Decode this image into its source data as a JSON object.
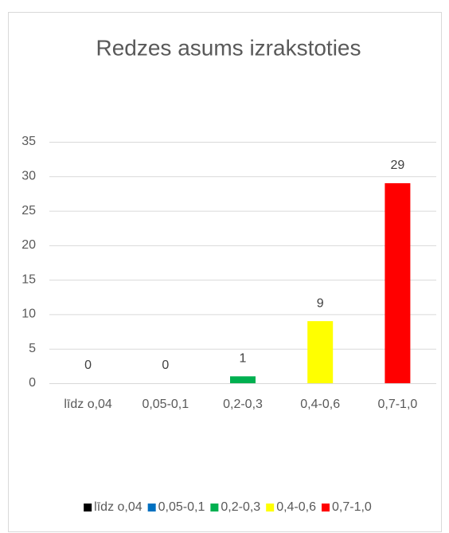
{
  "chart_data": {
    "type": "bar",
    "title": "Redzes asums izrakstoties",
    "categories": [
      "līdz o,04",
      "0,05-0,1",
      "0,2-0,3",
      "0,4-0,6",
      "0,7-1,0"
    ],
    "values": [
      0,
      0,
      1,
      9,
      29
    ],
    "colors": [
      "#000000",
      "#0070c0",
      "#00b050",
      "#ffff00",
      "#ff0000"
    ],
    "ylim": [
      0,
      35
    ],
    "yticks": [
      0,
      5,
      10,
      15,
      20,
      25,
      30,
      35
    ],
    "grid": true,
    "legend": "bottom"
  }
}
